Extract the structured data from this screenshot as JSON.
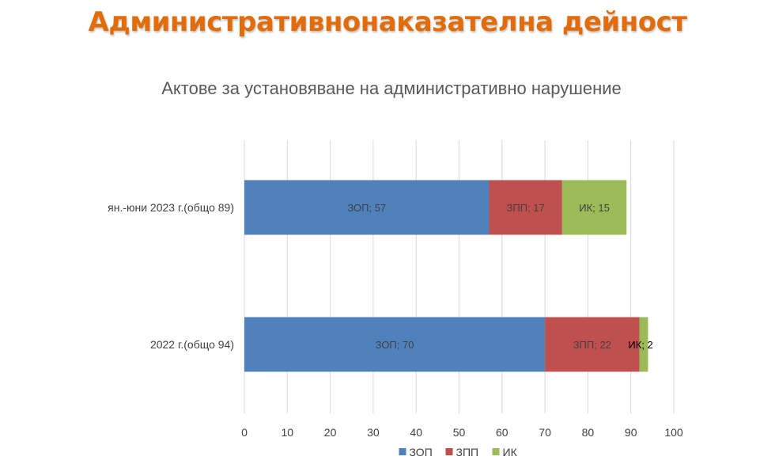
{
  "page_title": "Административнонаказателна дейност",
  "chart_data": {
    "type": "bar",
    "orientation": "horizontal",
    "stacked": true,
    "title": "Актове за установяване на административно нарушение",
    "categories": [
      "2022 г.(общо 94)",
      "ян.-юни 2023 г.(общо 89)"
    ],
    "series": [
      {
        "name": "ЗОП",
        "values": [
          70,
          57
        ],
        "color": "#4f81bd",
        "labels": [
          "ЗОП; 70",
          "ЗОП; 57"
        ]
      },
      {
        "name": "ЗПП",
        "values": [
          22,
          17
        ],
        "color": "#c0504d",
        "labels": [
          "ЗПП; 22",
          "ЗПП; 17"
        ]
      },
      {
        "name": "ИК",
        "values": [
          2,
          15
        ],
        "color": "#9bbb59",
        "labels": [
          "ИК; 2",
          "ИК; 15"
        ]
      }
    ],
    "xlim": [
      0,
      100
    ],
    "x_ticks": [
      "0",
      "10",
      "20",
      "30",
      "40",
      "50",
      "60",
      "70",
      "80",
      "90",
      "100"
    ],
    "grid": true,
    "legend_position": "bottom"
  }
}
